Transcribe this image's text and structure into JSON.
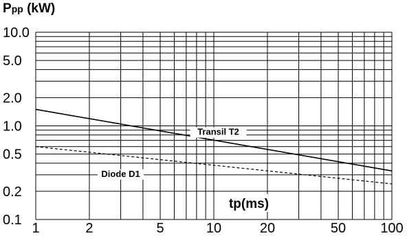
{
  "chart_data": {
    "type": "line",
    "ylabel": "Ppp (kW)",
    "xlabel": "tp(ms)",
    "x_scale": "log",
    "y_scale": "log",
    "xlim": [
      1,
      100
    ],
    "ylim": [
      0.1,
      10.0
    ],
    "x_ticks": [
      "1",
      "2",
      "5",
      "10",
      "20",
      "50",
      "100"
    ],
    "y_ticks": [
      "10.0",
      "5.0",
      "2.0",
      "1.0",
      "0.5",
      "0.2",
      "0.1"
    ],
    "grid": true,
    "series": [
      {
        "name": "Transil T2",
        "style": "solid",
        "x": [
          1,
          100
        ],
        "y": [
          1.5,
          0.33
        ]
      },
      {
        "name": "Diode D1",
        "style": "dashed",
        "x": [
          1,
          100
        ],
        "y": [
          0.6,
          0.24
        ]
      }
    ]
  }
}
